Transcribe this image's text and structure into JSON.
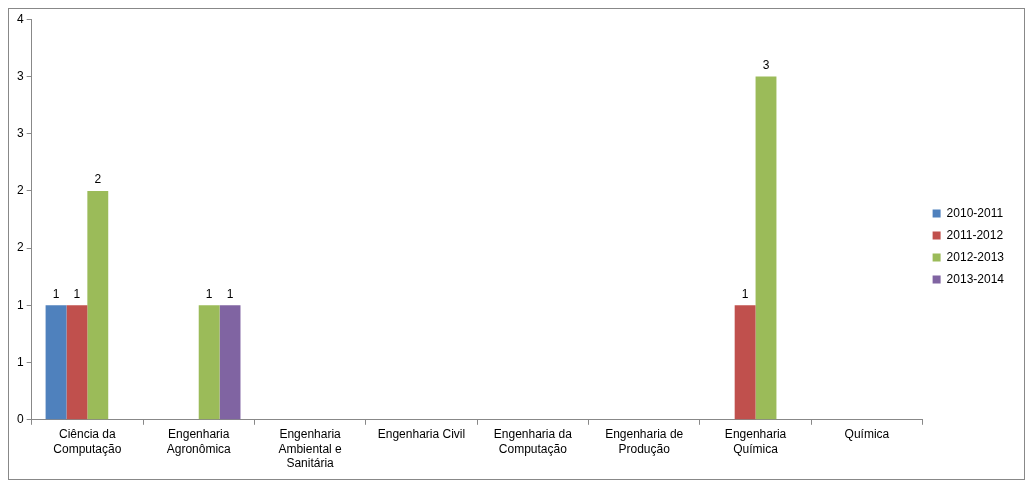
{
  "chart_data": {
    "type": "bar",
    "categories": [
      "Ciência da Computação",
      "Engenharia Agronômica",
      "Engenharia Ambiental e Sanitária",
      "Engenharia Civil",
      "Engenharia da Computação",
      "Engenharia de Produção",
      "Engenharia Química",
      "Química"
    ],
    "series": [
      {
        "name": "2010-2011",
        "color": "#4f81bd",
        "values": [
          1,
          null,
          null,
          null,
          null,
          null,
          null,
          null
        ]
      },
      {
        "name": "2011-2012",
        "color": "#c0504d",
        "values": [
          1,
          null,
          null,
          null,
          null,
          null,
          1,
          null
        ]
      },
      {
        "name": "2012-2013",
        "color": "#9bbb59",
        "values": [
          2,
          1,
          null,
          null,
          null,
          null,
          3,
          null
        ]
      },
      {
        "name": "2013-2014",
        "color": "#8064a2",
        "values": [
          null,
          1,
          null,
          null,
          null,
          null,
          null,
          null
        ]
      }
    ],
    "ylim": [
      0,
      3.5
    ],
    "yticks": [
      0,
      {
        "value": 0.5,
        "label": "1"
      },
      1,
      {
        "value": 1.5,
        "label": "2"
      },
      2,
      {
        "value": 2.5,
        "label": "3"
      },
      3,
      {
        "value": 3.5,
        "label": "4"
      }
    ],
    "grid": false,
    "legend": "right",
    "data_labels": true
  }
}
